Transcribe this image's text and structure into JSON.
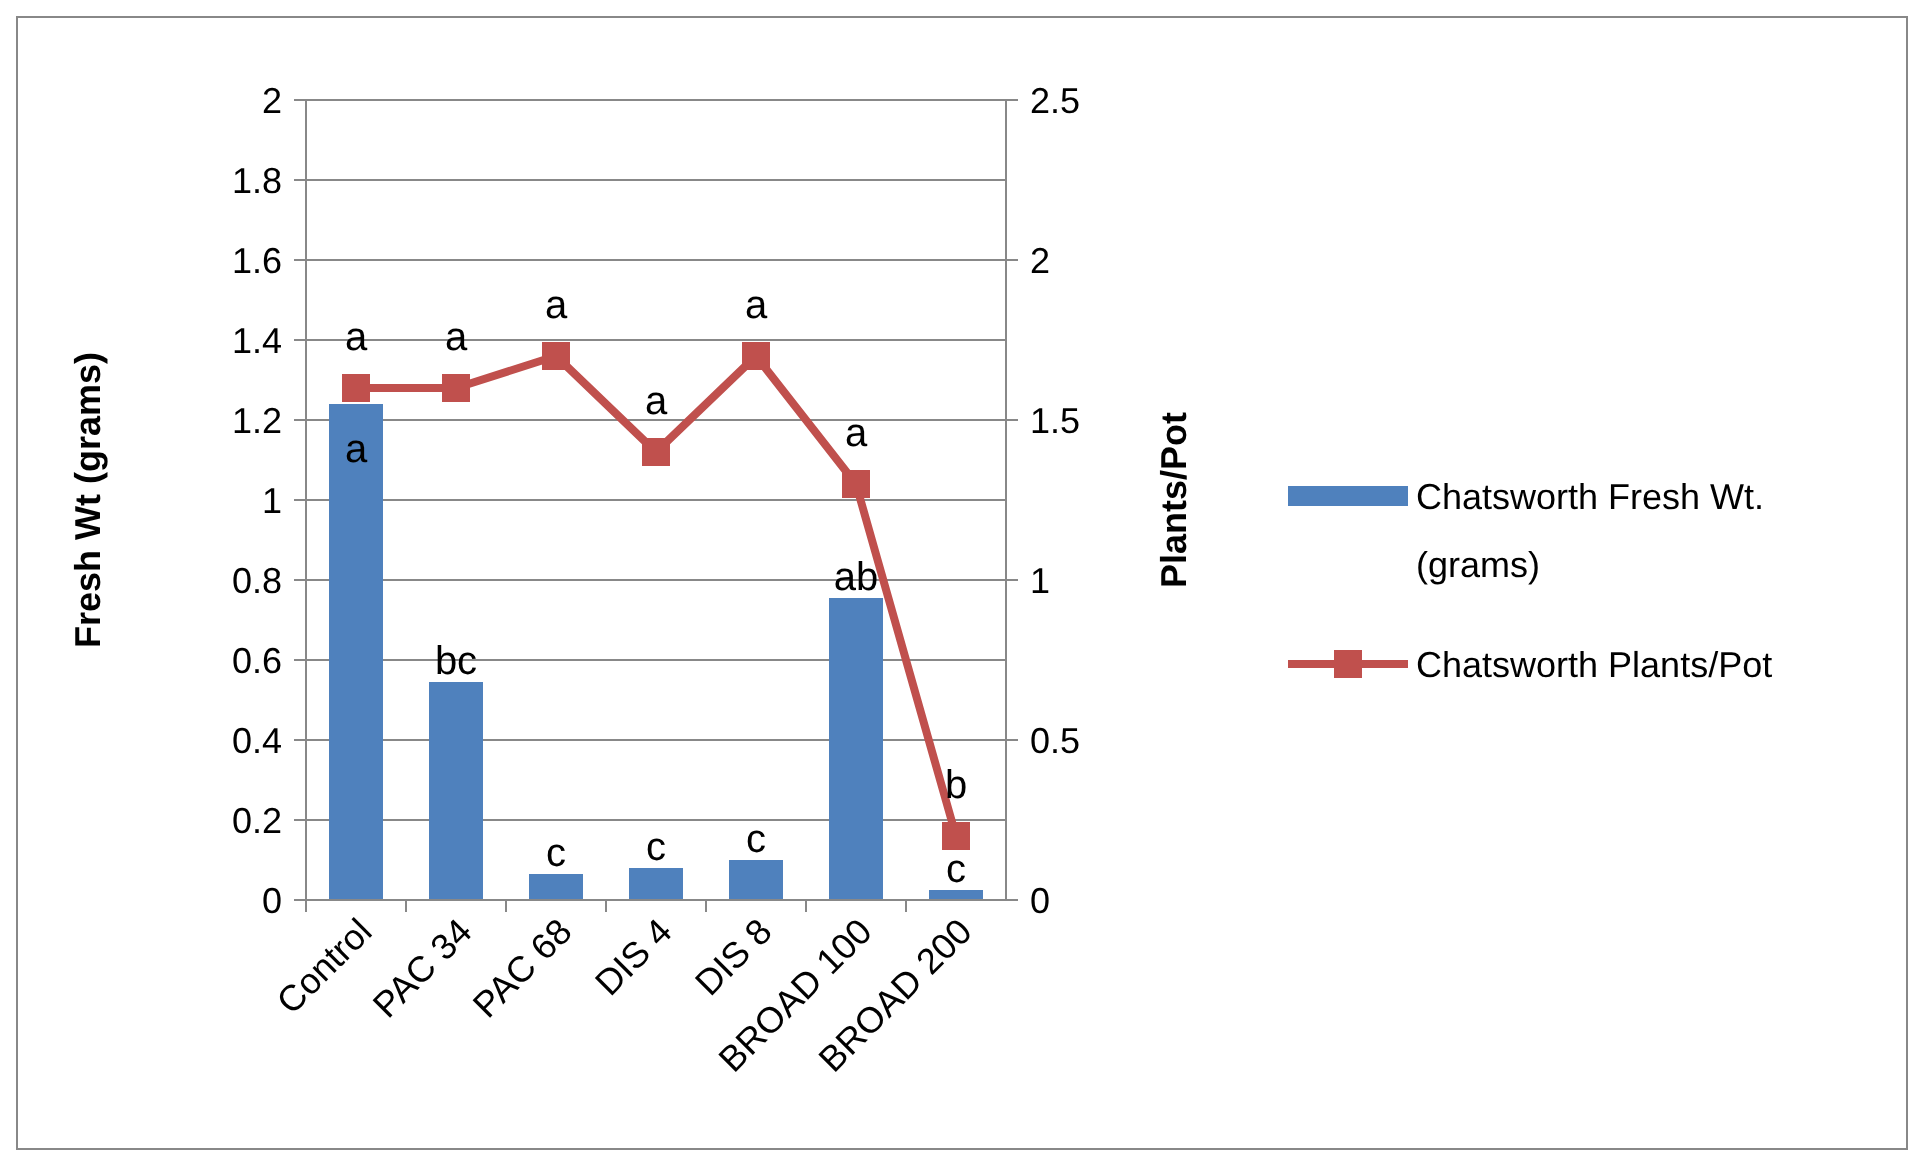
{
  "chart_data": {
    "type": "bar",
    "xlabel": null,
    "ylabel": "Fresh Wt (grams)",
    "y2label": "Plants/Pot",
    "categories": [
      "Control",
      "PAC 34",
      "PAC 68",
      "DIS 4",
      "DIS 8",
      "BROAD 100",
      "BROAD 200"
    ],
    "series": [
      {
        "name": "Chatsworth Fresh Wt. (grams)",
        "color": "#4f81bd",
        "values": [
          1.24,
          0.545,
          0.065,
          0.08,
          0.1,
          0.755,
          0.025
        ],
        "value_labels": [
          "a",
          "bc",
          "c",
          "c",
          "c",
          "ab",
          "c"
        ]
      },
      {
        "name": "Chatsworth Plants/Pot",
        "type": "line",
        "axis": "y2",
        "color": "#c0504d",
        "marker": "square",
        "values": [
          1.6,
          1.6,
          1.7,
          1.4,
          1.7,
          1.3,
          0.2
        ],
        "value_labels": [
          "a",
          "a",
          "a",
          "a",
          "a",
          "a",
          "b"
        ]
      }
    ],
    "ylim": [
      0,
      2
    ],
    "yticks": [
      0,
      0.2,
      0.4,
      0.6,
      0.8,
      1,
      1.2,
      1.4,
      1.6,
      1.8,
      2
    ],
    "y2lim": [
      0,
      2.5
    ],
    "y2ticks": [
      0,
      0.5,
      1,
      1.5,
      2,
      2.5
    ],
    "grid": "y",
    "legend": "right"
  }
}
